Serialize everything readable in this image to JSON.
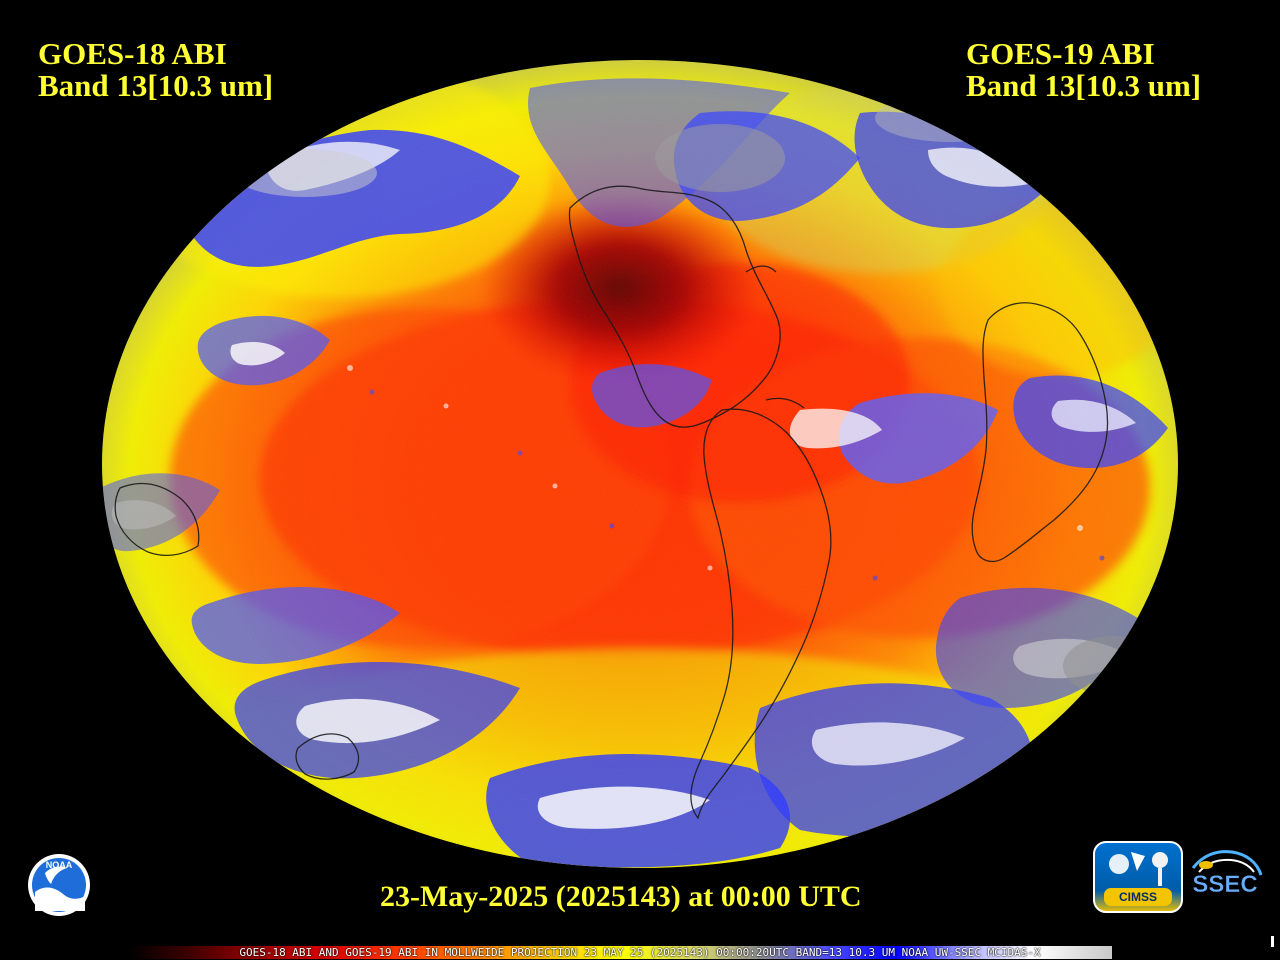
{
  "header": {
    "left_satellite": "GOES-18 ABI",
    "left_band": "Band 13[10.3 um]",
    "right_satellite": "GOES-19 ABI",
    "right_band": "Band 13[10.3 um]"
  },
  "footer": {
    "timestamp": "23-May-2025 (2025143) at 00:00 UTC",
    "scale_caption": "GOES-18 ABI AND GOES-19 ABI IN MOLLWEIDE PROJECTION 23 MAY 25 (2025143) 00:00:20UTC BAND=13 10.3 UM NOAA UW-SSEC MCIDAS-X"
  },
  "logos": {
    "noaa": "NOAA",
    "cimss": "CIMSS",
    "ssec": "SSEC"
  },
  "colors": {
    "label_yellow": "#ffff33",
    "ocean_red": "#ff3300",
    "warm_orange": "#ff8800",
    "cloud_blue": "#2d38ff",
    "cloud_white": "#f2f2ff",
    "cold_gray": "#9a9a9a",
    "land_outline": "#111111"
  }
}
